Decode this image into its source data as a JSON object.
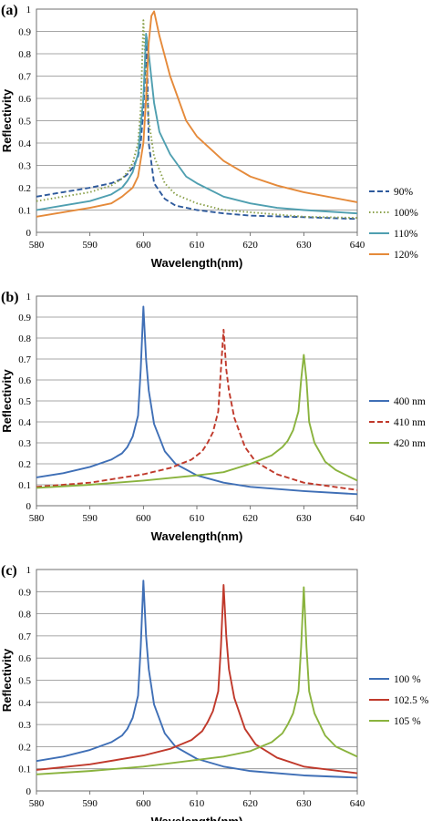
{
  "chart_data": [
    {
      "type": "line",
      "panel_label": "(a)",
      "xlabel": "Wavelength(nm)",
      "ylabel": "Reflectivity",
      "xlim": [
        580,
        640
      ],
      "ylim": [
        0,
        1
      ],
      "xticks": [
        580,
        590,
        600,
        610,
        620,
        630,
        640
      ],
      "yticks": [
        0,
        0.1,
        0.2,
        0.3,
        0.4,
        0.5,
        0.6,
        0.7,
        0.8,
        0.9,
        1
      ],
      "grid": "horizontal",
      "legend": "right",
      "series": [
        {
          "name": "90%",
          "color": "#2e5a9c",
          "style": "dashed",
          "x": [
            580,
            585,
            590,
            594,
            596,
            597,
            598,
            599,
            599.5,
            600,
            600.3,
            600.6,
            601,
            602,
            604,
            606,
            610,
            615,
            620,
            630,
            640
          ],
          "y": [
            0.16,
            0.18,
            0.2,
            0.22,
            0.24,
            0.26,
            0.29,
            0.34,
            0.4,
            0.55,
            0.7,
            0.88,
            0.4,
            0.22,
            0.15,
            0.12,
            0.1,
            0.085,
            0.075,
            0.068,
            0.06
          ]
        },
        {
          "name": "100%",
          "color": "#8aa04a",
          "style": "dotted",
          "x": [
            580,
            585,
            590,
            594,
            596,
            597,
            598,
            599,
            599.5,
            600,
            600.5,
            601,
            602,
            604,
            606,
            610,
            615,
            620,
            630,
            640
          ],
          "y": [
            0.14,
            0.16,
            0.18,
            0.21,
            0.24,
            0.27,
            0.31,
            0.4,
            0.55,
            0.95,
            0.7,
            0.5,
            0.34,
            0.22,
            0.17,
            0.13,
            0.1,
            0.09,
            0.07,
            0.065
          ]
        },
        {
          "name": "110%",
          "color": "#4f9fb0",
          "style": "solid",
          "x": [
            580,
            585,
            590,
            594,
            596,
            597,
            598,
            599,
            600,
            600.5,
            601,
            602,
            603,
            605,
            608,
            610,
            615,
            620,
            625,
            630,
            640
          ],
          "y": [
            0.1,
            0.12,
            0.14,
            0.17,
            0.2,
            0.23,
            0.27,
            0.35,
            0.6,
            0.89,
            0.8,
            0.58,
            0.45,
            0.35,
            0.25,
            0.22,
            0.16,
            0.13,
            0.11,
            0.1,
            0.085
          ]
        },
        {
          "name": "120%",
          "color": "#e58a3a",
          "style": "solid",
          "x": [
            580,
            585,
            590,
            594,
            596,
            598,
            599,
            600,
            600.5,
            601,
            601.5,
            602,
            603,
            605,
            608,
            610,
            615,
            620,
            625,
            630,
            640
          ],
          "y": [
            0.07,
            0.09,
            0.11,
            0.13,
            0.16,
            0.2,
            0.25,
            0.4,
            0.6,
            0.85,
            0.97,
            0.99,
            0.88,
            0.7,
            0.5,
            0.43,
            0.32,
            0.25,
            0.21,
            0.18,
            0.135
          ]
        }
      ]
    },
    {
      "type": "line",
      "panel_label": "(b)",
      "xlabel": "Wavelength(nm)",
      "ylabel": "Reflectivity",
      "xlim": [
        580,
        640
      ],
      "ylim": [
        0,
        1
      ],
      "xticks": [
        580,
        590,
        600,
        610,
        620,
        630,
        640
      ],
      "yticks": [
        0,
        0.1,
        0.2,
        0.3,
        0.4,
        0.5,
        0.6,
        0.7,
        0.8,
        0.9,
        1
      ],
      "grid": "horizontal",
      "legend": "right",
      "series": [
        {
          "name": "400 nm",
          "color": "#3f6fb6",
          "style": "solid",
          "x": [
            580,
            585,
            590,
            594,
            596,
            597,
            598,
            599,
            599.5,
            600,
            600.5,
            601,
            602,
            604,
            606,
            610,
            615,
            620,
            630,
            640
          ],
          "y": [
            0.135,
            0.155,
            0.185,
            0.22,
            0.25,
            0.28,
            0.33,
            0.43,
            0.65,
            0.95,
            0.7,
            0.55,
            0.39,
            0.26,
            0.2,
            0.145,
            0.11,
            0.09,
            0.07,
            0.055
          ]
        },
        {
          "name": "410 nm",
          "color": "#c0392b",
          "style": "dashed",
          "x": [
            580,
            590,
            600,
            605,
            609,
            611,
            612,
            613,
            614,
            614.5,
            615,
            615.5,
            616,
            617,
            619,
            621,
            625,
            630,
            640
          ],
          "y": [
            0.09,
            0.11,
            0.15,
            0.18,
            0.22,
            0.26,
            0.3,
            0.35,
            0.45,
            0.65,
            0.84,
            0.65,
            0.55,
            0.42,
            0.28,
            0.21,
            0.15,
            0.11,
            0.075
          ]
        },
        {
          "name": "420 nm",
          "color": "#8ab33e",
          "style": "solid",
          "x": [
            580,
            590,
            600,
            610,
            615,
            620,
            624,
            626,
            627,
            628,
            629,
            629.5,
            630,
            630.5,
            631,
            632,
            634,
            636,
            640
          ],
          "y": [
            0.085,
            0.1,
            0.12,
            0.145,
            0.16,
            0.2,
            0.24,
            0.28,
            0.31,
            0.36,
            0.45,
            0.6,
            0.72,
            0.6,
            0.4,
            0.3,
            0.21,
            0.17,
            0.12
          ]
        }
      ]
    },
    {
      "type": "line",
      "panel_label": "(c)",
      "xlabel": "Wavelength(nm)",
      "ylabel": "Reflectivity",
      "xlim": [
        580,
        640
      ],
      "ylim": [
        0,
        1
      ],
      "xticks": [
        580,
        590,
        600,
        610,
        620,
        630,
        640
      ],
      "yticks": [
        0,
        0.1,
        0.2,
        0.3,
        0.4,
        0.5,
        0.6,
        0.7,
        0.8,
        0.9,
        1
      ],
      "grid": "horizontal",
      "legend": "right",
      "series": [
        {
          "name": "100 %",
          "color": "#3f6fb6",
          "style": "solid",
          "x": [
            580,
            585,
            590,
            594,
            596,
            597,
            598,
            599,
            599.5,
            600,
            600.5,
            601,
            602,
            604,
            606,
            610,
            615,
            620,
            630,
            640
          ],
          "y": [
            0.135,
            0.155,
            0.185,
            0.22,
            0.25,
            0.28,
            0.33,
            0.43,
            0.65,
            0.95,
            0.7,
            0.55,
            0.39,
            0.26,
            0.2,
            0.145,
            0.11,
            0.09,
            0.07,
            0.06
          ]
        },
        {
          "name": "102.5 %",
          "color": "#c0392b",
          "style": "solid",
          "x": [
            580,
            590,
            600,
            605,
            609,
            611,
            612,
            613,
            614,
            614.5,
            615,
            615.5,
            616,
            617,
            619,
            621,
            625,
            630,
            640
          ],
          "y": [
            0.095,
            0.12,
            0.16,
            0.19,
            0.23,
            0.27,
            0.31,
            0.36,
            0.45,
            0.65,
            0.93,
            0.7,
            0.55,
            0.42,
            0.28,
            0.21,
            0.15,
            0.11,
            0.08
          ]
        },
        {
          "name": "105 %",
          "color": "#8ab33e",
          "style": "solid",
          "x": [
            580,
            590,
            600,
            610,
            615,
            620,
            624,
            626,
            627,
            628,
            629,
            629.5,
            630,
            630.5,
            631,
            632,
            634,
            636,
            640
          ],
          "y": [
            0.075,
            0.09,
            0.11,
            0.14,
            0.155,
            0.18,
            0.22,
            0.26,
            0.3,
            0.35,
            0.45,
            0.65,
            0.92,
            0.65,
            0.45,
            0.35,
            0.25,
            0.2,
            0.155
          ]
        }
      ]
    }
  ]
}
